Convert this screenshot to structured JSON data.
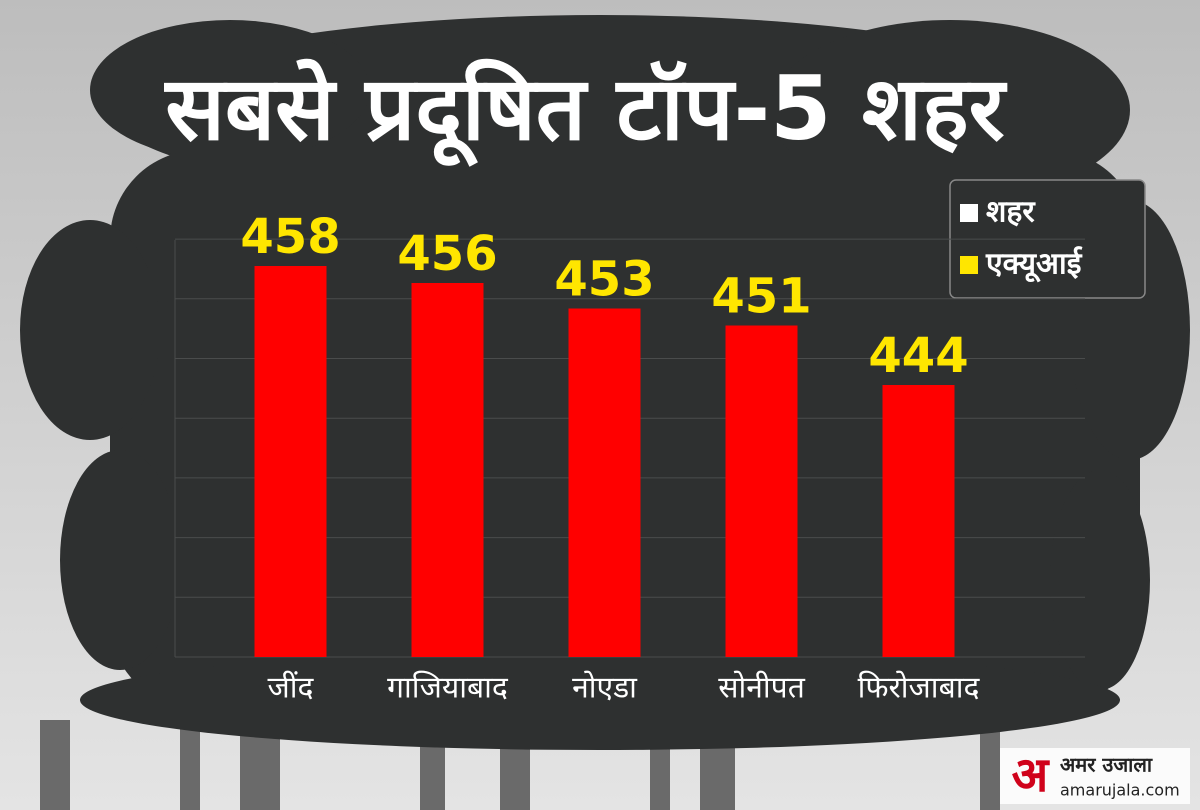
{
  "chart_data": {
    "type": "bar",
    "title": "सबसे प्रदूषित टॉप-5 शहर",
    "categories": [
      "जींद",
      "गाजियाबाद",
      "नोएडा",
      "सोनीपत",
      "फिरोजाबाद"
    ],
    "values": [
      458,
      456,
      453,
      451,
      444
    ],
    "color": "#ff0000",
    "ylim": [
      412,
      466
    ],
    "legend": [
      {
        "label": "शहर",
        "color": "#ffffff"
      },
      {
        "label": "एक्यूआई",
        "color": "#ffe600"
      }
    ],
    "brand": {
      "mark": "अ",
      "name": "अमर उजाला",
      "site": "amarujala.com"
    }
  }
}
